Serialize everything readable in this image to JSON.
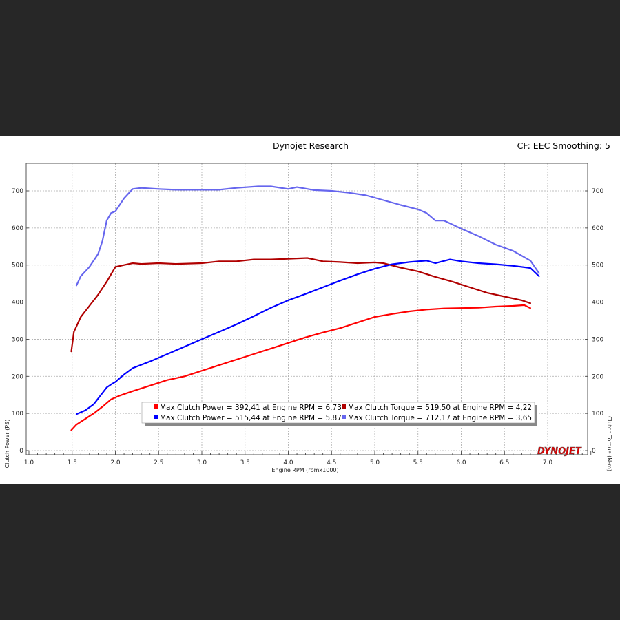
{
  "header": {
    "title": "Dynojet Research",
    "subtitle": "CF: EEC Smoothing: 5"
  },
  "logo": {
    "text": "DYNOJET"
  },
  "chart_data": {
    "type": "line",
    "xlabel": "Engine RPM (rpmx1000)",
    "ylabel": "Clutch Power (PS)",
    "ylabel_right": "Clutch Torque (N-m)",
    "xlim": [
      1.0,
      7.5
    ],
    "ylim": [
      0,
      760
    ],
    "ylim_right": [
      0,
      760
    ],
    "x_ticks": [
      "1.0",
      "1.5",
      "2.0",
      "2.5",
      "3.0",
      "3.5",
      "4.0",
      "4.5",
      "5.0",
      "5.5",
      "6.0",
      "6.5",
      "7.0"
    ],
    "y_ticks": [
      "0",
      "100",
      "200",
      "300",
      "400",
      "500",
      "600",
      "700"
    ],
    "y_ticks_right": [
      "0",
      "100",
      "200",
      "300",
      "400",
      "500",
      "600",
      "700"
    ],
    "grid": true,
    "legend_position": "bottom-center",
    "legend": [
      "Max Clutch Power = 392,41 at Engine RPM = 6,73",
      "Max Clutch Torque = 519,50 at Engine RPM = 4,22",
      "Max Clutch Power = 515,44 at Engine RPM = 5,87",
      "Max Clutch Torque = 712,17 at Engine RPM = 3,65"
    ],
    "series": [
      {
        "color": "#ff0000",
        "axis": "left",
        "x": [
          1.49,
          1.55,
          1.65,
          1.75,
          1.85,
          1.95,
          2.05,
          2.2,
          2.4,
          2.6,
          2.8,
          3.0,
          3.2,
          3.4,
          3.6,
          3.8,
          4.0,
          4.2,
          4.4,
          4.6,
          4.8,
          5.0,
          5.2,
          5.4,
          5.6,
          5.8,
          6.0,
          6.2,
          6.4,
          6.6,
          6.73,
          6.8
        ],
        "y": [
          55,
          70,
          85,
          100,
          118,
          138,
          148,
          160,
          175,
          190,
          200,
          215,
          230,
          245,
          260,
          275,
          290,
          305,
          318,
          330,
          345,
          360,
          368,
          375,
          380,
          383,
          384,
          385,
          388,
          390,
          392,
          384
        ]
      },
      {
        "color": "#b00000",
        "axis": "right",
        "x": [
          1.49,
          1.52,
          1.6,
          1.7,
          1.8,
          1.9,
          1.95,
          2.0,
          2.1,
          2.2,
          2.3,
          2.5,
          2.7,
          3.0,
          3.2,
          3.4,
          3.6,
          3.8,
          4.0,
          4.22,
          4.4,
          4.6,
          4.8,
          5.0,
          5.1,
          5.3,
          5.5,
          5.7,
          5.9,
          6.1,
          6.3,
          6.5,
          6.7,
          6.8
        ],
        "y": [
          267,
          320,
          360,
          390,
          420,
          455,
          475,
          495,
          500,
          505,
          503,
          505,
          503,
          505,
          510,
          510,
          515,
          515,
          517,
          519,
          510,
          508,
          505,
          507,
          505,
          493,
          483,
          468,
          455,
          440,
          425,
          415,
          405,
          397
        ]
      },
      {
        "color": "#0000ff",
        "axis": "left",
        "x": [
          1.55,
          1.65,
          1.75,
          1.85,
          1.9,
          1.95,
          2.0,
          2.1,
          2.2,
          2.4,
          2.6,
          2.8,
          3.0,
          3.2,
          3.4,
          3.6,
          3.8,
          4.0,
          4.2,
          4.4,
          4.6,
          4.8,
          5.0,
          5.2,
          5.4,
          5.6,
          5.7,
          5.87,
          6.0,
          6.2,
          6.4,
          6.6,
          6.8,
          6.9
        ],
        "y": [
          98,
          108,
          125,
          155,
          170,
          178,
          185,
          205,
          222,
          240,
          260,
          280,
          300,
          320,
          340,
          362,
          385,
          405,
          422,
          440,
          458,
          475,
          490,
          502,
          508,
          512,
          505,
          515,
          510,
          505,
          502,
          498,
          492,
          470
        ]
      },
      {
        "color": "#6666ee",
        "axis": "right",
        "x": [
          1.55,
          1.6,
          1.7,
          1.8,
          1.85,
          1.9,
          1.95,
          2.0,
          2.1,
          2.2,
          2.3,
          2.5,
          2.7,
          3.0,
          3.2,
          3.4,
          3.65,
          3.8,
          4.0,
          4.1,
          4.3,
          4.5,
          4.7,
          4.9,
          5.1,
          5.3,
          5.5,
          5.6,
          5.7,
          5.8,
          6.0,
          6.2,
          6.4,
          6.6,
          6.8,
          6.9
        ],
        "y": [
          445,
          470,
          495,
          530,
          565,
          620,
          640,
          645,
          680,
          705,
          708,
          705,
          703,
          703,
          703,
          708,
          712,
          712,
          705,
          710,
          702,
          700,
          695,
          688,
          675,
          662,
          650,
          640,
          620,
          620,
          598,
          578,
          555,
          538,
          512,
          478
        ]
      }
    ]
  }
}
